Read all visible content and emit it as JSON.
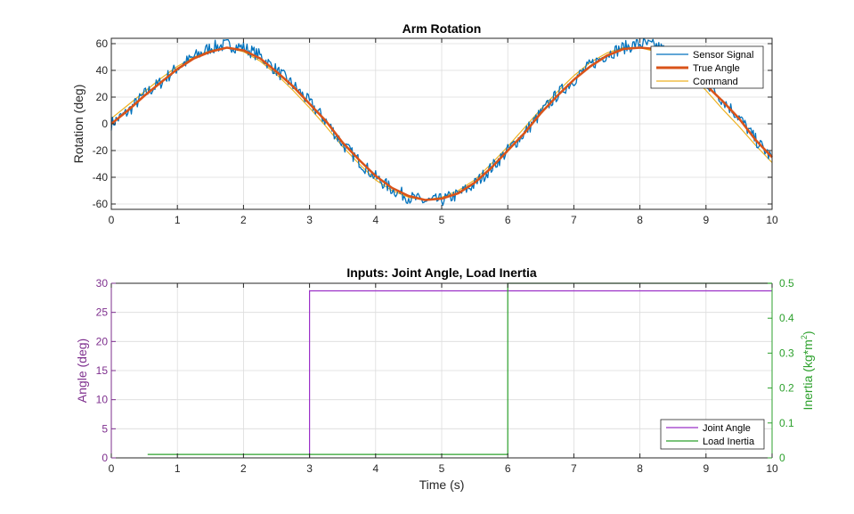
{
  "chart_data": [
    {
      "type": "line",
      "title": "Arm Rotation",
      "xlabel": "",
      "ylabel": "Rotation (deg)",
      "xlim": [
        0,
        10
      ],
      "ylim": [
        -64,
        64
      ],
      "xticks": [
        0,
        1,
        2,
        3,
        4,
        5,
        6,
        7,
        8,
        9,
        10
      ],
      "yticks": [
        -60,
        -40,
        -20,
        0,
        20,
        40,
        60
      ],
      "grid": true,
      "legend_position": "top-right",
      "series": [
        {
          "name": "Sensor Signal",
          "color": "#0072BD",
          "x": [
            0,
            0.25,
            0.5,
            0.75,
            1.0,
            1.25,
            1.5,
            1.75,
            2.0,
            2.25,
            2.5,
            2.75,
            3.0,
            3.25,
            3.5,
            3.75,
            4.0,
            4.25,
            4.5,
            4.75,
            5.0,
            5.25,
            5.5,
            5.75,
            6.0,
            6.25,
            6.5,
            6.75,
            7.0,
            7.25,
            7.5,
            7.75,
            8.0,
            8.25,
            8.5,
            8.75,
            9.0,
            9.25,
            9.5,
            9.75,
            10.0
          ],
          "y": [
            0,
            9,
            22,
            31,
            42,
            50,
            57,
            59,
            57,
            51,
            40,
            29,
            16,
            2,
            -15,
            -28,
            -40,
            -49,
            -55,
            -58,
            -57,
            -53,
            -45,
            -33,
            -20,
            -7,
            8,
            22,
            33,
            44,
            52,
            57,
            60,
            58,
            52,
            42,
            31,
            18,
            5,
            -12,
            -26
          ],
          "noise_amplitude": 5
        },
        {
          "name": "True Angle",
          "color": "#D95319",
          "x": [
            0,
            0.25,
            0.5,
            0.75,
            1.0,
            1.25,
            1.5,
            1.75,
            2.0,
            2.25,
            2.5,
            2.75,
            3.0,
            3.25,
            3.5,
            3.75,
            4.0,
            4.25,
            4.5,
            4.75,
            5.0,
            5.25,
            5.5,
            5.75,
            6.0,
            6.25,
            6.5,
            6.75,
            7.0,
            7.25,
            7.5,
            7.75,
            8.0,
            8.25,
            8.5,
            8.75,
            9.0,
            9.25,
            9.5,
            9.75,
            10.0
          ],
          "y": [
            0,
            10,
            21,
            31,
            41,
            49,
            54,
            57,
            55,
            49,
            39,
            28,
            15,
            2,
            -14,
            -27,
            -39,
            -48,
            -54,
            -57,
            -56,
            -52,
            -44,
            -33,
            -20,
            -7,
            8,
            21,
            33,
            43,
            51,
            56,
            57,
            56,
            50,
            40,
            29,
            17,
            4,
            -12,
            -25
          ]
        },
        {
          "name": "Command",
          "color": "#EDB120",
          "x": [
            0,
            0.25,
            0.5,
            0.75,
            1.0,
            1.25,
            1.5,
            1.75,
            2.0,
            2.25,
            2.5,
            2.75,
            3.0,
            3.25,
            3.5,
            3.75,
            4.0,
            4.25,
            4.5,
            4.75,
            5.0,
            5.25,
            5.5,
            5.75,
            6.0,
            6.25,
            6.5,
            6.75,
            7.0,
            7.25,
            7.5,
            7.75,
            8.0,
            8.25,
            8.5,
            8.75,
            9.0,
            9.25,
            9.5,
            9.75,
            10.0
          ],
          "y": [
            4,
            14,
            24,
            34,
            43,
            50,
            55,
            57,
            54,
            47,
            37,
            25,
            12,
            -2,
            -17,
            -30,
            -42,
            -50,
            -55,
            -57,
            -55,
            -50,
            -42,
            -30,
            -17,
            -3,
            11,
            24,
            36,
            46,
            53,
            57,
            57,
            54,
            47,
            37,
            25,
            11,
            -2,
            -16,
            -29
          ]
        }
      ]
    },
    {
      "type": "line",
      "title": "Inputs: Joint Angle, Load Inertia",
      "xlabel": "Time (s)",
      "ylabel": "Angle (deg)",
      "ylabel_right": "Inertia  (kg*m",
      "ylabel_right_sup": "2",
      "ylabel_right_tail": ")",
      "xlim": [
        0,
        10
      ],
      "ylim": [
        0,
        30
      ],
      "ylim_right": [
        0,
        0.5
      ],
      "xticks": [
        0,
        1,
        2,
        3,
        4,
        5,
        6,
        7,
        8,
        9,
        10
      ],
      "yticks": [
        0,
        5,
        10,
        15,
        20,
        25,
        30
      ],
      "yticks_right": [
        0,
        0.1,
        0.2,
        0.3,
        0.4,
        0.5
      ],
      "grid": true,
      "legend_position": "bottom-right",
      "left_axis_color": "#7E2F8E",
      "right_axis_color": "#2CA02C",
      "series": [
        {
          "name": "Joint Angle",
          "axis": "left",
          "color": "#9B30C8",
          "x": [
            3.0,
            3.0,
            10.0
          ],
          "y": [
            0,
            28.7,
            28.7
          ]
        },
        {
          "name": "Load Inertia",
          "axis": "right",
          "color": "#2CA02C",
          "x": [
            0.55,
            6.0,
            6.0,
            10.0
          ],
          "y": [
            0.01,
            0.01,
            0.5,
            0.5
          ]
        }
      ]
    }
  ]
}
